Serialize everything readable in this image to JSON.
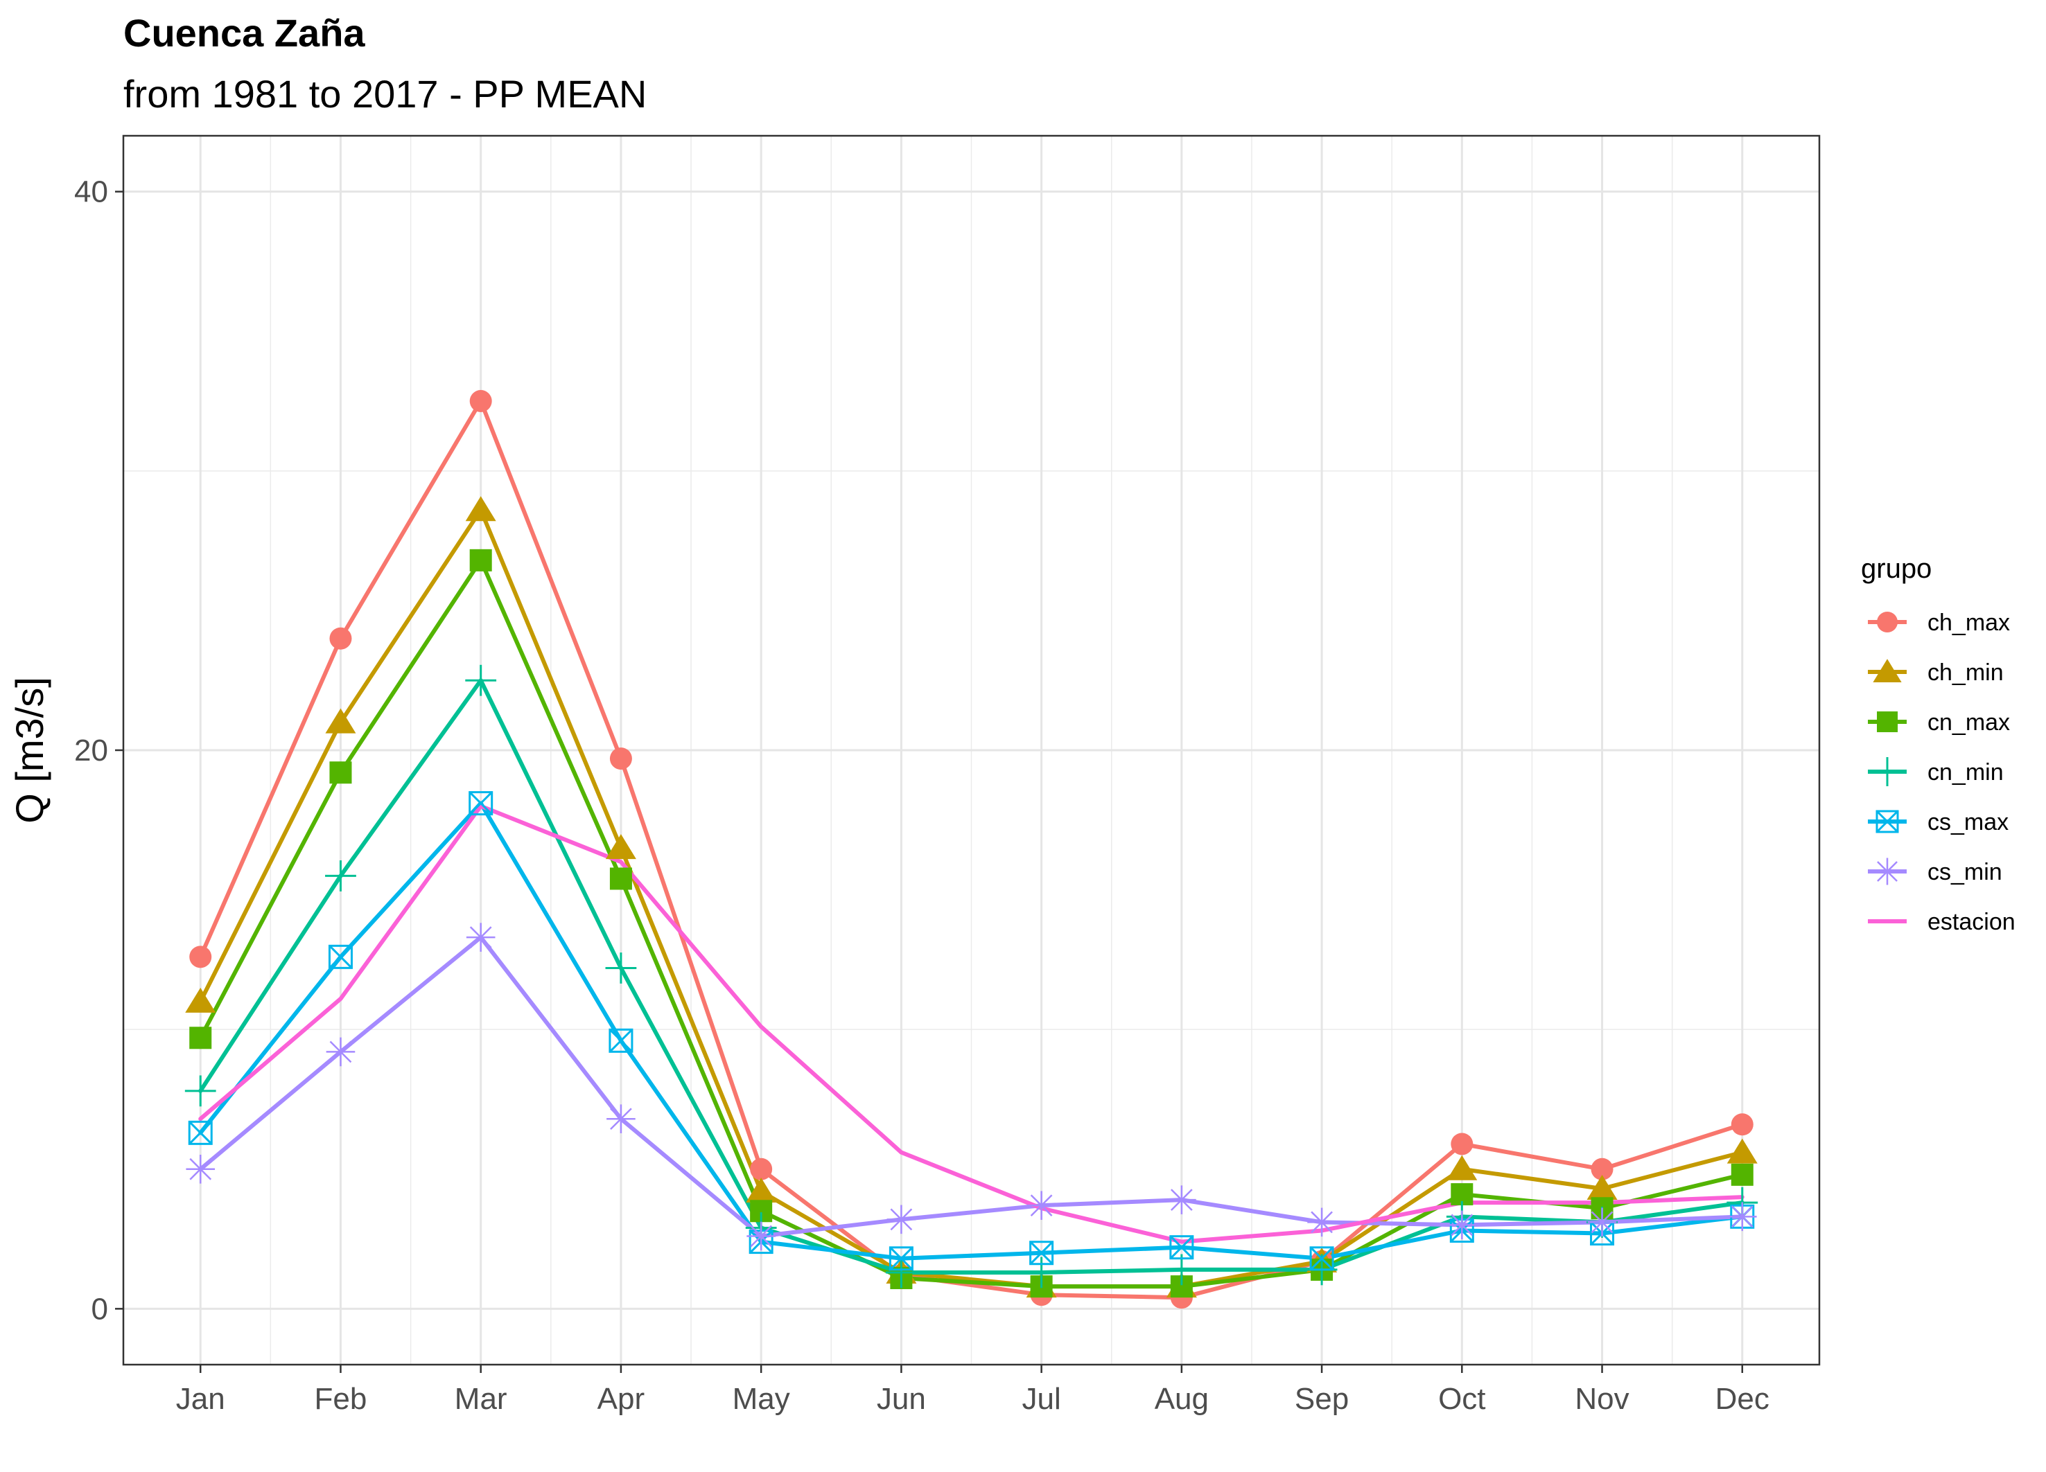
{
  "chart_data": {
    "type": "line",
    "title": "Cuenca Zaña",
    "subtitle": "from 1981 to 2017 - PP MEAN",
    "xlabel": "",
    "ylabel": "Q [m3/s]",
    "categories": [
      "Jan",
      "Feb",
      "Mar",
      "Apr",
      "May",
      "Jun",
      "Jul",
      "Aug",
      "Sep",
      "Oct",
      "Nov",
      "Dec"
    ],
    "ylim": [
      -2,
      42
    ],
    "yticks": [
      0,
      20,
      40
    ],
    "grid": true,
    "legend": {
      "title": "grupo",
      "position": "right"
    },
    "series": [
      {
        "name": "ch_max",
        "color": "#F8766D",
        "marker": "circle",
        "values": [
          12.6,
          24.0,
          32.5,
          19.7,
          5.0,
          1.2,
          0.5,
          0.4,
          1.7,
          5.9,
          5.0,
          6.6
        ]
      },
      {
        "name": "ch_min",
        "color": "#C49A00",
        "marker": "triangle",
        "values": [
          11.0,
          21.0,
          28.6,
          16.5,
          4.2,
          1.3,
          0.8,
          0.8,
          1.7,
          5.0,
          4.3,
          5.6
        ]
      },
      {
        "name": "cn_max",
        "color": "#53B400",
        "marker": "square",
        "values": [
          9.7,
          19.2,
          26.8,
          15.4,
          3.5,
          1.1,
          0.8,
          0.8,
          1.4,
          4.1,
          3.6,
          4.8
        ]
      },
      {
        "name": "cn_min",
        "color": "#00C094",
        "marker": "plus",
        "values": [
          7.8,
          15.5,
          22.5,
          12.2,
          2.9,
          1.3,
          1.3,
          1.4,
          1.4,
          3.3,
          3.1,
          3.8
        ]
      },
      {
        "name": "cs_max",
        "color": "#00B6EB",
        "marker": "square-x",
        "values": [
          6.3,
          12.6,
          18.1,
          9.6,
          2.4,
          1.8,
          2.0,
          2.2,
          1.8,
          2.8,
          2.7,
          3.3
        ]
      },
      {
        "name": "cs_min",
        "color": "#A58AFF",
        "marker": "asterisk",
        "values": [
          5.0,
          9.2,
          13.3,
          6.8,
          2.6,
          3.2,
          3.7,
          3.9,
          3.1,
          3.0,
          3.1,
          3.3
        ]
      },
      {
        "name": "estacion",
        "color": "#FB61D7",
        "marker": "none",
        "values": [
          6.8,
          11.1,
          18.0,
          16.0,
          10.1,
          5.6,
          3.6,
          2.4,
          2.8,
          3.8,
          3.8,
          4.0
        ]
      }
    ]
  }
}
